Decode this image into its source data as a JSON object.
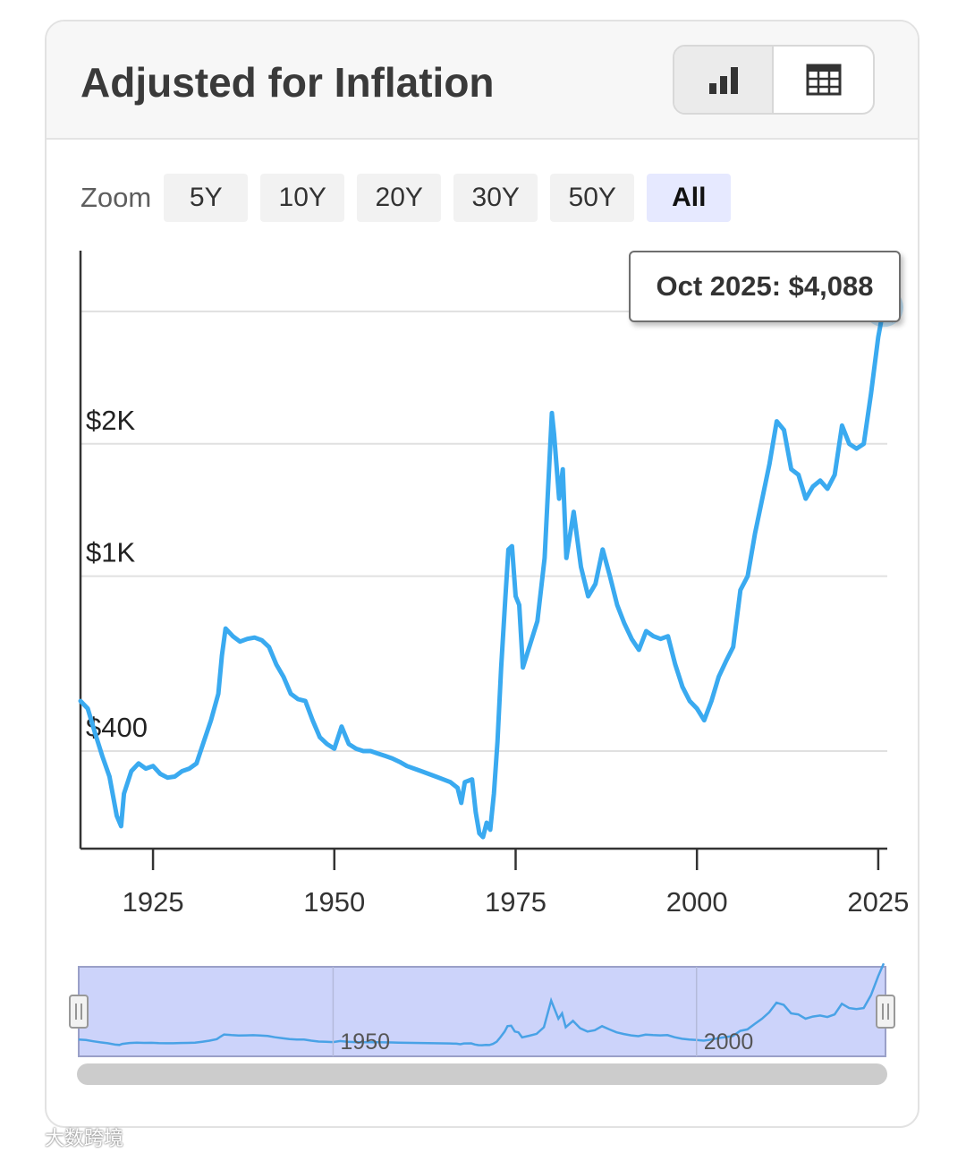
{
  "header": {
    "title": "Adjusted for Inflation",
    "views": [
      {
        "icon": "bar-chart-icon",
        "active": true
      },
      {
        "icon": "table-grid-icon",
        "active": false
      }
    ]
  },
  "zoom": {
    "label": "Zoom",
    "options": [
      "5Y",
      "10Y",
      "20Y",
      "30Y",
      "50Y",
      "All"
    ],
    "selected": "All"
  },
  "tooltip": {
    "text": "Oct 2025: $4,088"
  },
  "navigator": {
    "labels": [
      "1950",
      "2000"
    ]
  },
  "watermark": {
    "text": "大数跨境"
  },
  "colors": {
    "series": "#3aaaf0",
    "navigator_fill": "#ccd3fa",
    "navigator_line": "#49a2e6",
    "gridline": "#e0e0e0",
    "axis": "#333333"
  },
  "chart_data": {
    "type": "line",
    "title": "Adjusted for Inflation",
    "xlabel": "",
    "ylabel": "",
    "scale": "log",
    "xlim": [
      1915,
      2026
    ],
    "ylim": [
      240,
      5500
    ],
    "y_ticks": [
      {
        "value": 400,
        "label": "$400"
      },
      {
        "value": 1000,
        "label": "$1K"
      },
      {
        "value": 2000,
        "label": "$2K"
      },
      {
        "value": 4000,
        "label": ""
      }
    ],
    "x_ticks": [
      1925,
      1950,
      1975,
      2000,
      2025
    ],
    "grid": true,
    "legend": "none",
    "series": [
      {
        "name": "",
        "points": [
          [
            1915,
            520
          ],
          [
            1916,
            500
          ],
          [
            1917,
            440
          ],
          [
            1918,
            390
          ],
          [
            1919,
            350
          ],
          [
            1920,
            285
          ],
          [
            1920.6,
            270
          ],
          [
            1921,
            320
          ],
          [
            1922,
            360
          ],
          [
            1923,
            375
          ],
          [
            1924,
            365
          ],
          [
            1925,
            370
          ],
          [
            1926,
            355
          ],
          [
            1927,
            348
          ],
          [
            1928,
            350
          ],
          [
            1929,
            360
          ],
          [
            1930,
            365
          ],
          [
            1931,
            375
          ],
          [
            1932,
            420
          ],
          [
            1933,
            470
          ],
          [
            1934,
            540
          ],
          [
            1934.5,
            660
          ],
          [
            1935,
            760
          ],
          [
            1936,
            730
          ],
          [
            1937,
            710
          ],
          [
            1938,
            720
          ],
          [
            1939,
            725
          ],
          [
            1940,
            715
          ],
          [
            1941,
            690
          ],
          [
            1942,
            630
          ],
          [
            1943,
            590
          ],
          [
            1944,
            540
          ],
          [
            1945,
            525
          ],
          [
            1946,
            520
          ],
          [
            1947,
            470
          ],
          [
            1948,
            430
          ],
          [
            1949,
            415
          ],
          [
            1950,
            405
          ],
          [
            1951,
            455
          ],
          [
            1952,
            415
          ],
          [
            1953,
            405
          ],
          [
            1954,
            400
          ],
          [
            1955,
            400
          ],
          [
            1956,
            395
          ],
          [
            1957,
            390
          ],
          [
            1958,
            385
          ],
          [
            1959,
            378
          ],
          [
            1960,
            370
          ],
          [
            1961,
            365
          ],
          [
            1962,
            360
          ],
          [
            1963,
            355
          ],
          [
            1964,
            350
          ],
          [
            1965,
            345
          ],
          [
            1966,
            340
          ],
          [
            1967,
            330
          ],
          [
            1967.5,
            305
          ],
          [
            1968,
            340
          ],
          [
            1969,
            345
          ],
          [
            1969.5,
            290
          ],
          [
            1970,
            260
          ],
          [
            1970.5,
            255
          ],
          [
            1971,
            275
          ],
          [
            1971.5,
            265
          ],
          [
            1972,
            320
          ],
          [
            1972.5,
            420
          ],
          [
            1973,
            620
          ],
          [
            1973.6,
            900
          ],
          [
            1974,
            1150
          ],
          [
            1974.5,
            1170
          ],
          [
            1975,
            900
          ],
          [
            1975.5,
            860
          ],
          [
            1976,
            620
          ],
          [
            1977,
            700
          ],
          [
            1978,
            790
          ],
          [
            1979,
            1100
          ],
          [
            1980,
            2350
          ],
          [
            1980.3,
            2100
          ],
          [
            1981,
            1500
          ],
          [
            1981.5,
            1750
          ],
          [
            1982,
            1100
          ],
          [
            1983,
            1400
          ],
          [
            1984,
            1050
          ],
          [
            1985,
            900
          ],
          [
            1986,
            960
          ],
          [
            1987,
            1150
          ],
          [
            1988,
            1000
          ],
          [
            1989,
            860
          ],
          [
            1990,
            780
          ],
          [
            1991,
            720
          ],
          [
            1992,
            680
          ],
          [
            1993,
            750
          ],
          [
            1994,
            730
          ],
          [
            1995,
            720
          ],
          [
            1996,
            730
          ],
          [
            1997,
            630
          ],
          [
            1998,
            560
          ],
          [
            1999,
            520
          ],
          [
            2000,
            500
          ],
          [
            2001,
            470
          ],
          [
            2002,
            520
          ],
          [
            2003,
            590
          ],
          [
            2004,
            640
          ],
          [
            2005,
            690
          ],
          [
            2006,
            930
          ],
          [
            2007,
            1000
          ],
          [
            2008,
            1250
          ],
          [
            2009,
            1500
          ],
          [
            2010,
            1800
          ],
          [
            2011,
            2250
          ],
          [
            2012,
            2150
          ],
          [
            2013,
            1750
          ],
          [
            2014,
            1700
          ],
          [
            2015,
            1500
          ],
          [
            2016,
            1600
          ],
          [
            2017,
            1650
          ],
          [
            2018,
            1580
          ],
          [
            2019,
            1700
          ],
          [
            2020,
            2200
          ],
          [
            2021,
            2000
          ],
          [
            2022,
            1950
          ],
          [
            2023,
            2000
          ],
          [
            2024,
            2600
          ],
          [
            2025,
            3500
          ],
          [
            2025.75,
            4088
          ]
        ]
      }
    ],
    "highlight": {
      "x": 2025.75,
      "y": 4088,
      "label": "Oct 2025: $4,088"
    }
  }
}
